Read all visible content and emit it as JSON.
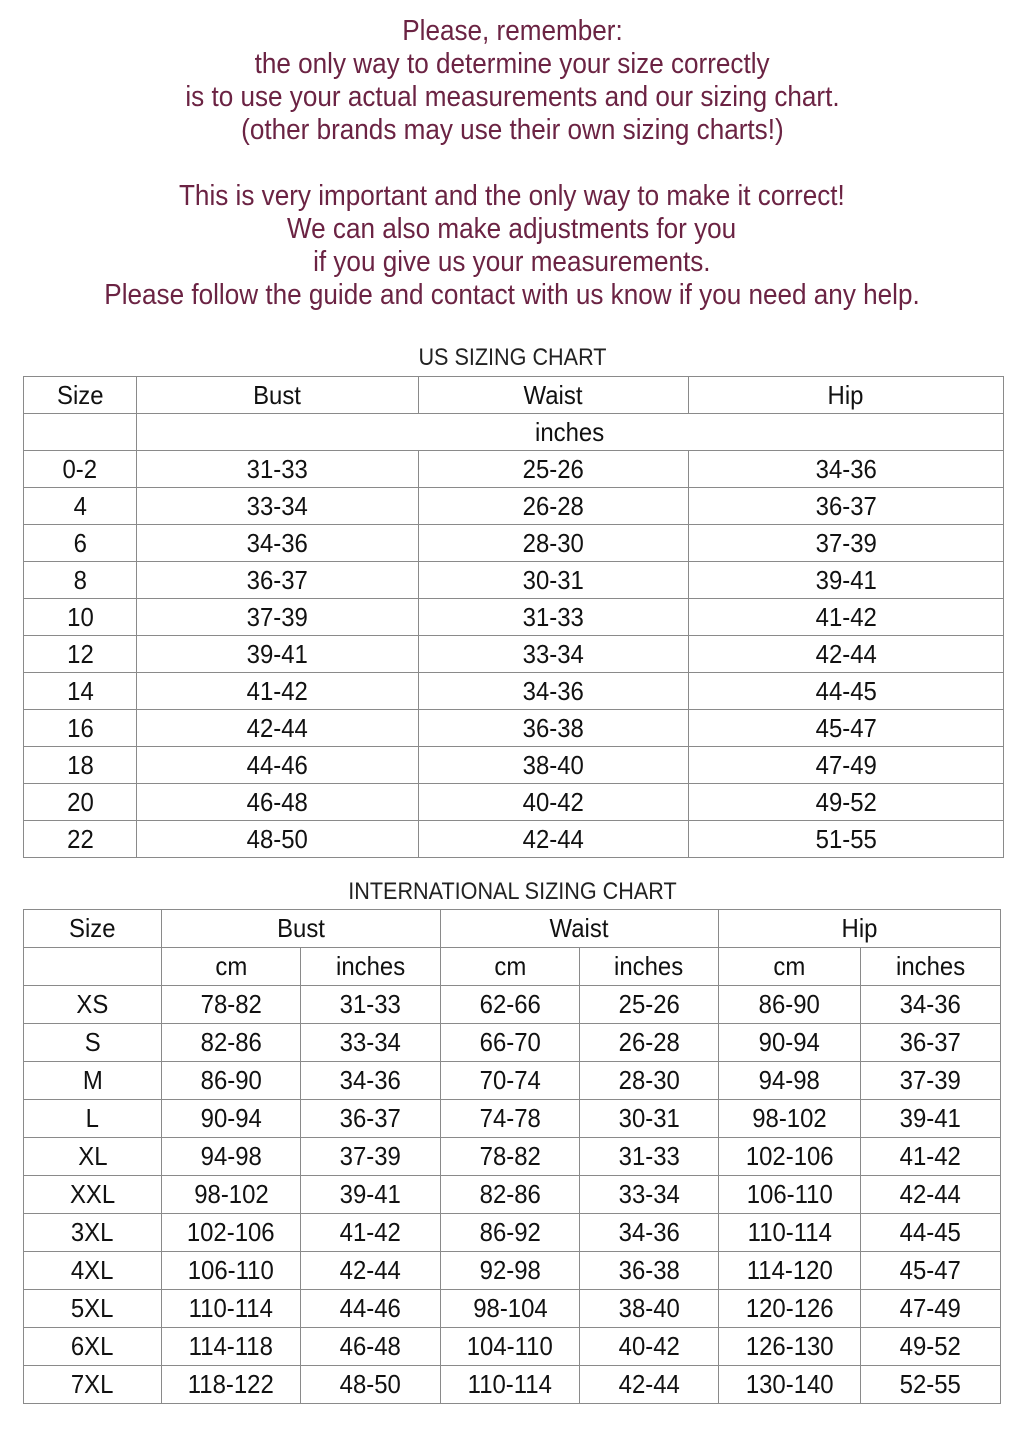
{
  "intro": {
    "lines": [
      "Please, remember:",
      "the only way to determine your size correctly",
      "is to use your actual measurements and our sizing chart.",
      "(other brands may use their own sizing charts!)",
      "",
      "This is very important and the only way to make it correct!",
      "We can also make adjustments for you",
      "if you give us your measurements.",
      "Please follow the guide and contact with us know if you need any help."
    ]
  },
  "colors": {
    "intro_text": "#6b2343",
    "table_text": "#111111",
    "border": "#8a8a8a"
  },
  "us_chart": {
    "title": "US SIZING CHART",
    "headers": [
      "Size",
      "Bust",
      "Waist",
      "Hip"
    ],
    "unit": "inches",
    "rows": [
      [
        "0-2",
        "31-33",
        "25-26",
        "34-36"
      ],
      [
        "4",
        "33-34",
        "26-28",
        "36-37"
      ],
      [
        "6",
        "34-36",
        "28-30",
        "37-39"
      ],
      [
        "8",
        "36-37",
        "30-31",
        "39-41"
      ],
      [
        "10",
        "37-39",
        "31-33",
        "41-42"
      ],
      [
        "12",
        "39-41",
        "33-34",
        "42-44"
      ],
      [
        "14",
        "41-42",
        "34-36",
        "44-45"
      ],
      [
        "16",
        "42-44",
        "36-38",
        "45-47"
      ],
      [
        "18",
        "44-46",
        "38-40",
        "47-49"
      ],
      [
        "20",
        "46-48",
        "40-42",
        "49-52"
      ],
      [
        "22",
        "48-50",
        "42-44",
        "51-55"
      ]
    ]
  },
  "intl_chart": {
    "title": "INTERNATIONAL SIZING CHART",
    "headers": [
      "Size",
      "Bust",
      "Waist",
      "Hip"
    ],
    "subheaders": [
      "cm",
      "inches",
      "cm",
      "inches",
      "cm",
      "inches"
    ],
    "rows": [
      [
        "XS",
        "78-82",
        "31-33",
        "62-66",
        "25-26",
        "86-90",
        "34-36"
      ],
      [
        "S",
        "82-86",
        "33-34",
        "66-70",
        "26-28",
        "90-94",
        "36-37"
      ],
      [
        "M",
        "86-90",
        "34-36",
        "70-74",
        "28-30",
        "94-98",
        "37-39"
      ],
      [
        "L",
        "90-94",
        "36-37",
        "74-78",
        "30-31",
        "98-102",
        "39-41"
      ],
      [
        "XL",
        "94-98",
        "37-39",
        "78-82",
        "31-33",
        "102-106",
        "41-42"
      ],
      [
        "XXL",
        "98-102",
        "39-41",
        "82-86",
        "33-34",
        "106-110",
        "42-44"
      ],
      [
        "3XL",
        "102-106",
        "41-42",
        "86-92",
        "34-36",
        "110-114",
        "44-45"
      ],
      [
        "4XL",
        "106-110",
        "42-44",
        "92-98",
        "36-38",
        "114-120",
        "45-47"
      ],
      [
        "5XL",
        "110-114",
        "44-46",
        "98-104",
        "38-40",
        "120-126",
        "47-49"
      ],
      [
        "6XL",
        "114-118",
        "46-48",
        "104-110",
        "40-42",
        "126-130",
        "49-52"
      ],
      [
        "7XL",
        "118-122",
        "48-50",
        "110-114",
        "42-44",
        "130-140",
        "52-55"
      ]
    ]
  }
}
